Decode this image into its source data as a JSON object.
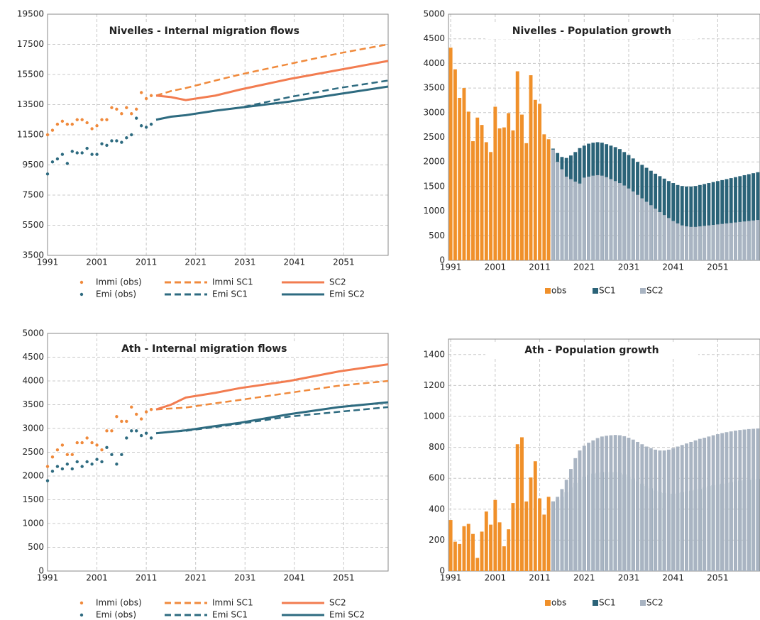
{
  "chart_data": [
    {
      "type": "line",
      "title": "Nivelles - Internal migration flows",
      "xlim": [
        1991,
        2060
      ],
      "xticks": [
        1991,
        2001,
        2011,
        2021,
        2031,
        2041,
        2051
      ],
      "ylim": [
        3500,
        19500
      ],
      "yticks": [
        3500,
        5500,
        7500,
        9500,
        11500,
        13500,
        15500,
        17500,
        19500
      ],
      "grid": true,
      "series": [
        {
          "name": "Immi (obs)",
          "color": "#f08a3c",
          "style": "dots",
          "x": [
            1991,
            1992,
            1993,
            1994,
            1995,
            1996,
            1997,
            1998,
            1999,
            2000,
            2001,
            2002,
            2003,
            2004,
            2005,
            2006,
            2007,
            2008,
            2009,
            2010,
            2011,
            2012
          ],
          "values": [
            11500,
            11800,
            12200,
            12400,
            12200,
            12200,
            12500,
            12500,
            12300,
            11900,
            12100,
            12500,
            12500,
            13300,
            13200,
            12900,
            13300,
            12900,
            13200,
            14300,
            13900,
            14100
          ]
        },
        {
          "name": "Immi SC1",
          "color": "#f08a3c",
          "style": "dashed",
          "x": [
            2013,
            2016,
            2019,
            2025,
            2030,
            2040,
            2050,
            2060
          ],
          "values": [
            14100,
            14400,
            14600,
            15100,
            15500,
            16200,
            16900,
            17500
          ]
        },
        {
          "name": "SC2",
          "color": "#f27c50",
          "style": "solid",
          "x": [
            2013,
            2016,
            2019,
            2025,
            2030,
            2040,
            2050,
            2060
          ],
          "values": [
            14100,
            14000,
            13800,
            14100,
            14500,
            15200,
            15800,
            16400
          ]
        },
        {
          "name": "Emi (obs)",
          "color": "#2e6b80",
          "style": "dots",
          "x": [
            1991,
            1992,
            1993,
            1994,
            1995,
            1996,
            1997,
            1998,
            1999,
            2000,
            2001,
            2002,
            2003,
            2004,
            2005,
            2006,
            2007,
            2008,
            2009,
            2010,
            2011,
            2012
          ],
          "values": [
            8900,
            9700,
            9900,
            10200,
            9600,
            10400,
            10300,
            10300,
            10600,
            10200,
            10200,
            10900,
            10800,
            11100,
            11100,
            11000,
            11300,
            11500,
            12600,
            12100,
            12000,
            12200
          ]
        },
        {
          "name": "Emi SC1",
          "color": "#2e6b80",
          "style": "dashed",
          "x": [
            2013,
            2016,
            2019,
            2025,
            2030,
            2040,
            2050,
            2060
          ],
          "values": [
            12500,
            12700,
            12800,
            13100,
            13300,
            14000,
            14600,
            15100
          ]
        },
        {
          "name": "Emi SC2",
          "color": "#2e6b80",
          "style": "solid",
          "x": [
            2013,
            2016,
            2019,
            2025,
            2030,
            2040,
            2050,
            2060
          ],
          "values": [
            12500,
            12700,
            12800,
            13100,
            13300,
            13700,
            14200,
            14700
          ]
        }
      ]
    },
    {
      "type": "bar",
      "title": "Nivelles - Population growth",
      "xlim": [
        1990.5,
        2060.5
      ],
      "xticks": [
        1991,
        2001,
        2011,
        2021,
        2031,
        2041,
        2051
      ],
      "ylim": [
        0,
        5000
      ],
      "yticks": [
        0,
        500,
        1000,
        1500,
        2000,
        2500,
        3000,
        3500,
        4000,
        4500,
        5000
      ],
      "grid": true,
      "series": [
        {
          "name": "obs",
          "color": "#f0902a",
          "x": [
            1991,
            1992,
            1993,
            1994,
            1995,
            1996,
            1997,
            1998,
            1999,
            2000,
            2001,
            2002,
            2003,
            2004,
            2005,
            2006,
            2007,
            2008,
            2009,
            2010,
            2011,
            2012,
            2013
          ],
          "values": [
            4320,
            3880,
            3300,
            3500,
            3020,
            2420,
            2900,
            2750,
            2400,
            2200,
            3120,
            2680,
            2700,
            2990,
            2640,
            3840,
            2960,
            2380,
            3760,
            3260,
            3180,
            2560,
            2460
          ]
        },
        {
          "name": "SC1",
          "color": "#2b6378",
          "x": [
            2014,
            2015,
            2016,
            2017,
            2018,
            2019,
            2020,
            2021,
            2022,
            2023,
            2024,
            2025,
            2026,
            2027,
            2028,
            2029,
            2030,
            2031,
            2032,
            2033,
            2034,
            2035,
            2036,
            2037,
            2038,
            2039,
            2040,
            2041,
            2042,
            2043,
            2044,
            2045,
            2046,
            2047,
            2048,
            2049,
            2050,
            2051,
            2052,
            2053,
            2054,
            2055,
            2056,
            2057,
            2058,
            2059,
            2060
          ],
          "values": [
            2270,
            2180,
            2100,
            2080,
            2130,
            2200,
            2280,
            2330,
            2370,
            2390,
            2400,
            2390,
            2360,
            2330,
            2300,
            2260,
            2200,
            2140,
            2070,
            2000,
            1940,
            1880,
            1820,
            1760,
            1710,
            1660,
            1610,
            1570,
            1530,
            1510,
            1500,
            1500,
            1510,
            1530,
            1550,
            1570,
            1590,
            1610,
            1630,
            1650,
            1670,
            1690,
            1710,
            1730,
            1750,
            1770,
            1790
          ]
        },
        {
          "name": "SC2",
          "color": "#a9b4c2",
          "x": [
            2014,
            2015,
            2016,
            2017,
            2018,
            2019,
            2020,
            2021,
            2022,
            2023,
            2024,
            2025,
            2026,
            2027,
            2028,
            2029,
            2030,
            2031,
            2032,
            2033,
            2034,
            2035,
            2036,
            2037,
            2038,
            2039,
            2040,
            2041,
            2042,
            2043,
            2044,
            2045,
            2046,
            2047,
            2048,
            2049,
            2050,
            2051,
            2052,
            2053,
            2054,
            2055,
            2056,
            2057,
            2058,
            2059,
            2060
          ],
          "values": [
            2250,
            2000,
            1850,
            1700,
            1650,
            1600,
            1560,
            1680,
            1700,
            1720,
            1730,
            1720,
            1690,
            1650,
            1610,
            1570,
            1520,
            1460,
            1400,
            1330,
            1260,
            1190,
            1120,
            1050,
            980,
            920,
            860,
            800,
            750,
            710,
            690,
            680,
            680,
            690,
            700,
            710,
            720,
            730,
            740,
            750,
            760,
            770,
            780,
            790,
            800,
            810,
            820
          ]
        }
      ]
    },
    {
      "type": "line",
      "title": "Ath - Internal migration flows",
      "xlim": [
        1991,
        2060
      ],
      "xticks": [
        1991,
        2001,
        2011,
        2021,
        2031,
        2041,
        2051
      ],
      "ylim": [
        0,
        5000
      ],
      "yticks": [
        0,
        500,
        1000,
        1500,
        2000,
        2500,
        3000,
        3500,
        4000,
        4500,
        5000
      ],
      "grid": true,
      "series": [
        {
          "name": "Immi (obs)",
          "color": "#f08a3c",
          "style": "dots",
          "x": [
            1991,
            1992,
            1993,
            1994,
            1995,
            1996,
            1997,
            1998,
            1999,
            2000,
            2001,
            2002,
            2003,
            2004,
            2005,
            2006,
            2007,
            2008,
            2009,
            2010,
            2011,
            2012
          ],
          "values": [
            2200,
            2400,
            2550,
            2650,
            2450,
            2450,
            2700,
            2700,
            2800,
            2700,
            2650,
            2550,
            2950,
            2950,
            3250,
            3150,
            3150,
            3450,
            3300,
            3200,
            3350,
            3400
          ]
        },
        {
          "name": "Immi SC1",
          "color": "#f08a3c",
          "style": "dashed",
          "x": [
            2013,
            2016,
            2019,
            2025,
            2030,
            2040,
            2050,
            2060
          ],
          "values": [
            3400,
            3420,
            3440,
            3530,
            3600,
            3750,
            3900,
            4000
          ]
        },
        {
          "name": "SC2",
          "color": "#f27c50",
          "style": "solid",
          "x": [
            2013,
            2016,
            2019,
            2025,
            2030,
            2040,
            2050,
            2060
          ],
          "values": [
            3400,
            3500,
            3650,
            3750,
            3850,
            4000,
            4200,
            4350
          ]
        },
        {
          "name": "Emi (obs)",
          "color": "#2e6b80",
          "style": "dots",
          "x": [
            1991,
            1992,
            1993,
            1994,
            1995,
            1996,
            1997,
            1998,
            1999,
            2000,
            2001,
            2002,
            2003,
            2004,
            2005,
            2006,
            2007,
            2008,
            2009,
            2010,
            2011,
            2012
          ],
          "values": [
            1900,
            2100,
            2200,
            2150,
            2250,
            2150,
            2300,
            2200,
            2300,
            2250,
            2350,
            2300,
            2600,
            2450,
            2250,
            2450,
            2800,
            2950,
            2950,
            2850,
            2900,
            2800
          ]
        },
        {
          "name": "Emi SC1",
          "color": "#2e6b80",
          "style": "dashed",
          "x": [
            2013,
            2016,
            2019,
            2025,
            2030,
            2040,
            2050,
            2060
          ],
          "values": [
            2900,
            2930,
            2950,
            3030,
            3100,
            3250,
            3350,
            3450
          ]
        },
        {
          "name": "Emi SC2",
          "color": "#2e6b80",
          "style": "solid",
          "x": [
            2013,
            2016,
            2019,
            2025,
            2030,
            2040,
            2050,
            2060
          ],
          "values": [
            2900,
            2930,
            2960,
            3050,
            3120,
            3300,
            3450,
            3550
          ]
        }
      ]
    },
    {
      "type": "bar",
      "title": "Ath - Population growth",
      "xlim": [
        1990.5,
        2060.5
      ],
      "xticks": [
        1991,
        2001,
        2011,
        2021,
        2031,
        2041,
        2051
      ],
      "ylim": [
        0,
        1500
      ],
      "yticks": [
        0,
        200,
        400,
        600,
        800,
        1000,
        1200,
        1400
      ],
      "grid": true,
      "series": [
        {
          "name": "obs",
          "color": "#f0902a",
          "x": [
            1991,
            1992,
            1993,
            1994,
            1995,
            1996,
            1997,
            1998,
            1999,
            2000,
            2001,
            2002,
            2003,
            2004,
            2005,
            2006,
            2007,
            2008,
            2009,
            2010,
            2011,
            2012,
            2013
          ],
          "values": [
            330,
            190,
            175,
            290,
            305,
            240,
            85,
            255,
            385,
            300,
            460,
            315,
            160,
            270,
            440,
            820,
            865,
            450,
            605,
            710,
            470,
            365,
            480
          ]
        },
        {
          "name": "SC1",
          "color": "#2b6378",
          "x": [
            2014,
            2015,
            2016,
            2017,
            2018,
            2019,
            2020,
            2021,
            2022,
            2023,
            2024,
            2025,
            2026,
            2027,
            2028,
            2029,
            2030,
            2031,
            2032,
            2033,
            2034,
            2035,
            2036,
            2037,
            2038,
            2039,
            2040,
            2041,
            2042,
            2043,
            2044,
            2045,
            2046,
            2047,
            2048,
            2049,
            2050,
            2051,
            2052,
            2053,
            2054,
            2055,
            2056,
            2057,
            2058,
            2059,
            2060
          ],
          "values": [
            450,
            460,
            480,
            510,
            540,
            570,
            590,
            610,
            620,
            630,
            635,
            640,
            640,
            640,
            640,
            635,
            625,
            610,
            595,
            580,
            565,
            550,
            535,
            520,
            510,
            505,
            500,
            500,
            505,
            510,
            515,
            520,
            525,
            530,
            540,
            550,
            555,
            560,
            565,
            570,
            575,
            580,
            585,
            588,
            590,
            592,
            595
          ]
        },
        {
          "name": "SC2",
          "color": "#a9b4c2",
          "x": [
            2014,
            2015,
            2016,
            2017,
            2018,
            2019,
            2020,
            2021,
            2022,
            2023,
            2024,
            2025,
            2026,
            2027,
            2028,
            2029,
            2030,
            2031,
            2032,
            2033,
            2034,
            2035,
            2036,
            2037,
            2038,
            2039,
            2040,
            2041,
            2042,
            2043,
            2044,
            2045,
            2046,
            2047,
            2048,
            2049,
            2050,
            2051,
            2052,
            2053,
            2054,
            2055,
            2056,
            2057,
            2058,
            2059,
            2060
          ],
          "values": [
            450,
            480,
            530,
            590,
            660,
            730,
            780,
            810,
            830,
            845,
            860,
            870,
            875,
            878,
            880,
            878,
            872,
            862,
            850,
            835,
            820,
            805,
            795,
            785,
            780,
            780,
            785,
            795,
            805,
            815,
            825,
            835,
            845,
            855,
            862,
            870,
            878,
            885,
            892,
            898,
            903,
            908,
            912,
            915,
            918,
            920,
            922
          ]
        }
      ]
    }
  ]
}
